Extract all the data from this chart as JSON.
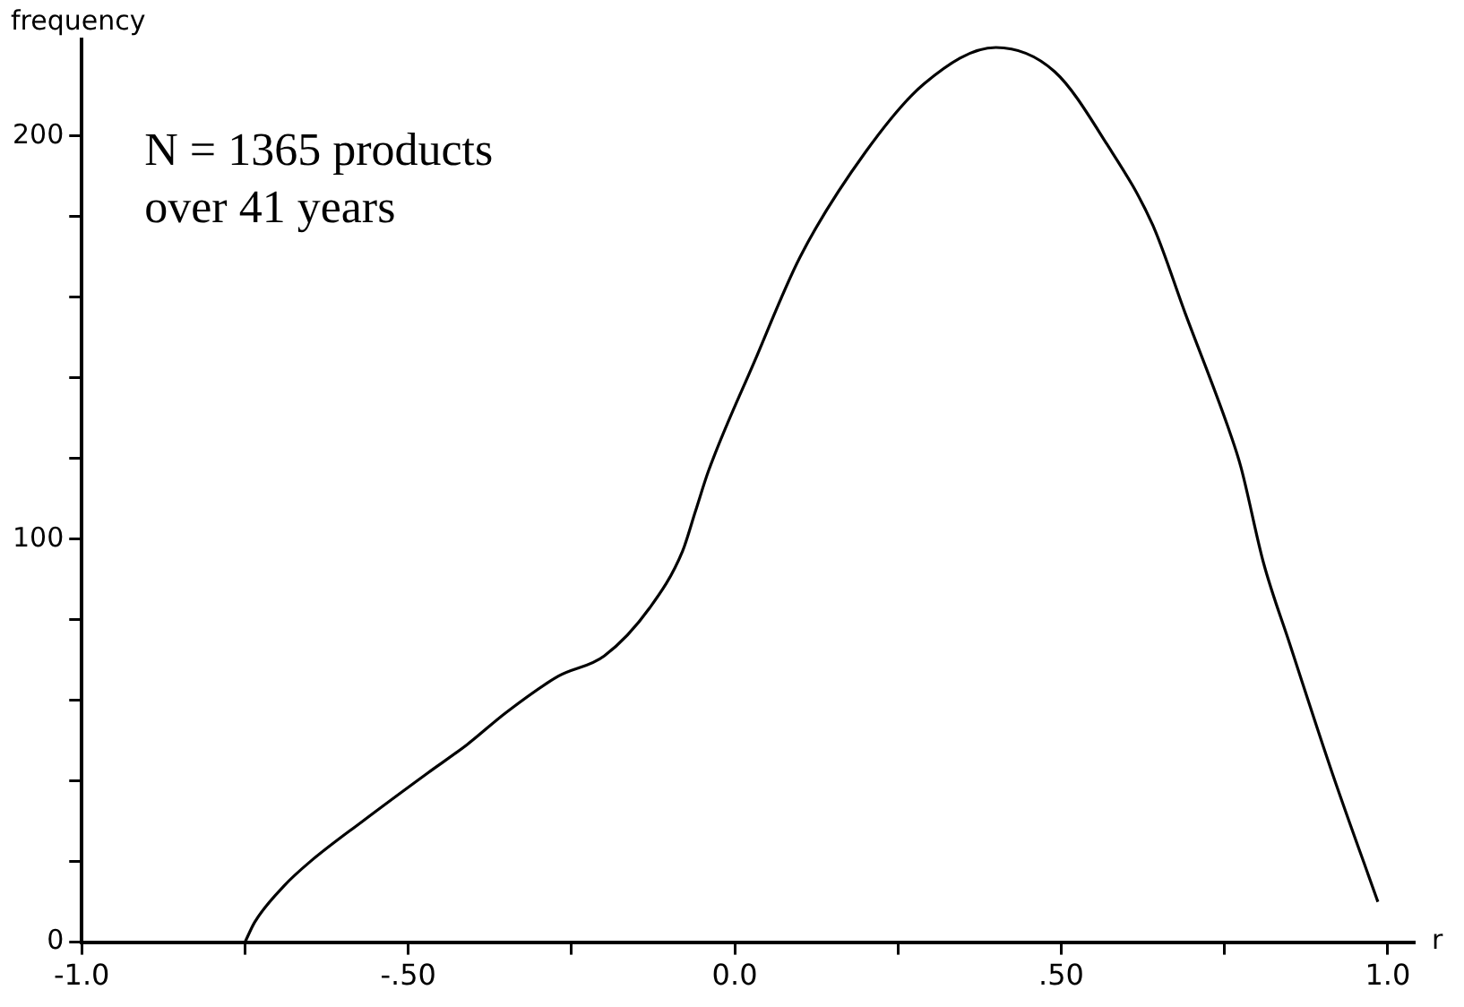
{
  "chart_data": {
    "type": "line",
    "xlabel": "r",
    "ylabel": "frequency",
    "annotations": [
      "N = 1365 products\nover 41 years"
    ],
    "x": [
      -0.75,
      -0.735,
      -0.69,
      -0.65,
      -0.57,
      -0.47,
      -0.41,
      -0.35,
      -0.27,
      -0.2,
      -0.13,
      -0.08,
      -0.06,
      -0.04,
      0.03,
      0.1,
      0.2,
      0.29,
      0.4,
      0.49,
      0.57,
      0.64,
      0.69,
      0.755,
      0.775,
      0.81,
      0.85,
      0.915,
      0.985
    ],
    "series": [
      {
        "color": "#000000",
        "values": [
          0,
          5,
          14,
          20,
          30,
          42,
          49,
          57,
          66,
          71,
          83,
          97,
          107,
          117,
          144,
          170,
          196,
          213,
          222,
          216,
          198,
          178,
          156,
          128,
          118,
          94,
          74,
          42,
          10
        ]
      }
    ],
    "xlim": [
      -1.0,
      1.04
    ],
    "ylim": [
      0,
      224
    ],
    "xticks": [
      {
        "value": -1.0,
        "label": "-1.0"
      },
      {
        "value": -0.75,
        "label": null
      },
      {
        "value": -0.5,
        "label": "-.50"
      },
      {
        "value": -0.25,
        "label": null
      },
      {
        "value": 0,
        "label": "0.0"
      },
      {
        "value": 0.25,
        "label": null
      },
      {
        "value": 0.5,
        "label": ".50"
      },
      {
        "value": 0.75,
        "label": null
      },
      {
        "value": 1.0,
        "label": "1.0"
      }
    ],
    "yticks": [
      0,
      {
        "value": 20,
        "label": null
      },
      {
        "value": 40,
        "label": null
      },
      {
        "value": 60,
        "label": null
      },
      {
        "value": 80,
        "label": null
      },
      100,
      {
        "value": 120,
        "label": null
      },
      {
        "value": 140,
        "label": null
      },
      {
        "value": 160,
        "label": null
      },
      {
        "value": 180,
        "label": null
      },
      200
    ],
    "grid": false,
    "legend": false,
    "marker": "none"
  }
}
